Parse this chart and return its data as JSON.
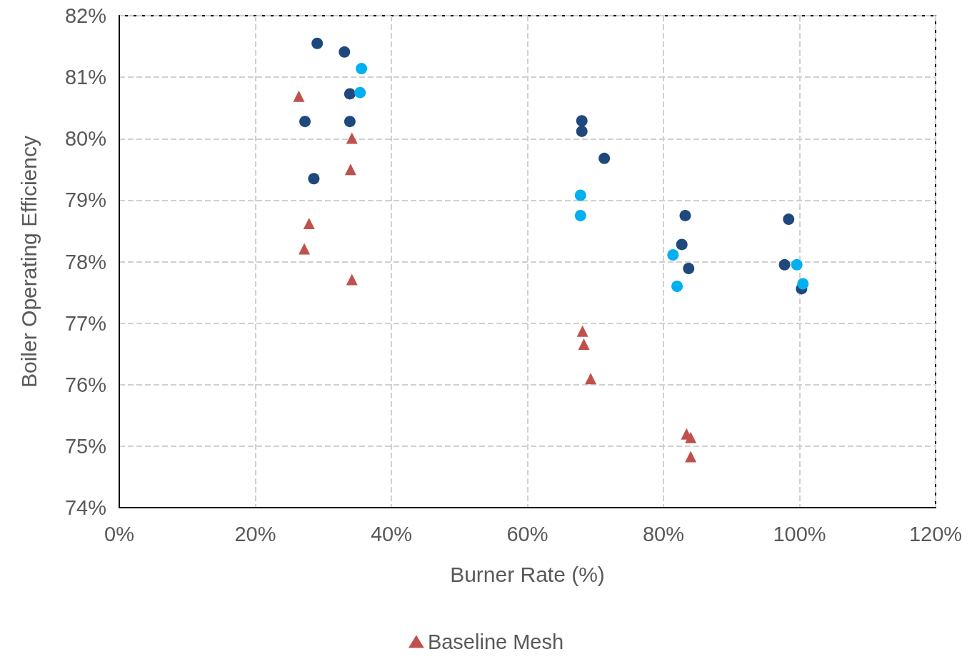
{
  "chart_data": {
    "type": "scatter",
    "xlabel": "Burner Rate (%)",
    "ylabel": "Boiler Operating Efficiency",
    "xlim": [
      0,
      120
    ],
    "ylim": [
      74,
      82
    ],
    "xticks": [
      {
        "value": 0,
        "label": "0%"
      },
      {
        "value": 20,
        "label": "20%"
      },
      {
        "value": 40,
        "label": "40%"
      },
      {
        "value": 60,
        "label": "60%"
      },
      {
        "value": 80,
        "label": "80%"
      },
      {
        "value": 100,
        "label": "100%"
      },
      {
        "value": 120,
        "label": "120%"
      }
    ],
    "yticks": [
      {
        "value": 74,
        "label": "74%"
      },
      {
        "value": 75,
        "label": "75%"
      },
      {
        "value": 76,
        "label": "76%"
      },
      {
        "value": 77,
        "label": "77%"
      },
      {
        "value": 78,
        "label": "78%"
      },
      {
        "value": 79,
        "label": "79%"
      },
      {
        "value": 80,
        "label": "80%"
      },
      {
        "value": 81,
        "label": "81%"
      },
      {
        "value": 82,
        "label": "82%"
      }
    ],
    "grid": true,
    "legend": "bottom",
    "series": [
      {
        "name": "Baseline Mesh",
        "color": "#c0504d",
        "marker": "triangle",
        "x": [
          26.4,
          34.2,
          34.0,
          27.9,
          27.2,
          34.2,
          68.1,
          68.3,
          69.3,
          83.4,
          84.0,
          84.0
        ],
        "values": [
          80.69,
          80.01,
          79.5,
          78.62,
          78.21,
          77.71,
          76.87,
          76.66,
          76.1,
          75.2,
          75.14,
          74.83
        ]
      },
      {
        "color": "#1f497d",
        "marker": "circle",
        "x": [
          29.1,
          33.1,
          33.9,
          27.3,
          33.9,
          28.6,
          68.0,
          68.0,
          71.3,
          83.2,
          82.7,
          83.7,
          98.4,
          97.8,
          100.3
        ],
        "values": [
          81.55,
          81.41,
          80.73,
          80.28,
          80.28,
          79.35,
          80.29,
          80.12,
          79.68,
          78.75,
          78.28,
          77.89,
          78.69,
          77.95,
          77.56
        ]
      },
      {
        "color": "#00b0f0",
        "marker": "circle",
        "x": [
          35.6,
          35.4,
          67.8,
          67.8,
          81.4,
          82.0,
          99.6,
          100.5
        ],
        "values": [
          81.14,
          80.75,
          79.08,
          78.75,
          78.11,
          77.6,
          77.95,
          77.64
        ]
      }
    ]
  }
}
